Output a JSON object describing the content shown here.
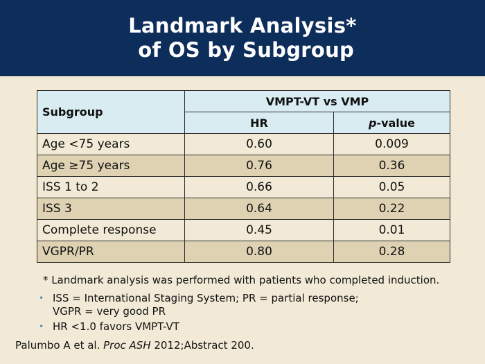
{
  "header": {
    "title_line1": "Landmark Analysis*",
    "title_line2": " of OS by Subgroup"
  },
  "table": {
    "col_subgroup": "Subgroup",
    "col_group": "VMPT-VT vs VMP",
    "col_hr": "HR",
    "col_pvalue_italic": "p",
    "col_pvalue_rest": "-value",
    "rows": [
      {
        "subgroup": "Age <75 years",
        "hr": "0.60",
        "p": "0.009"
      },
      {
        "subgroup": "Age ≥75 years",
        "hr": "0.76",
        "p": "0.36"
      },
      {
        "subgroup": "ISS 1 to 2",
        "hr": "0.66",
        "p": "0.05"
      },
      {
        "subgroup": "ISS 3",
        "hr": "0.64",
        "p": "0.22"
      },
      {
        "subgroup": "Complete response",
        "hr": "0.45",
        "p": "0.01"
      },
      {
        "subgroup": "VGPR/PR",
        "hr": "0.80",
        "p": "0.28"
      }
    ]
  },
  "footnote": "* Landmark analysis was performed with patients who completed induction.",
  "bullets": {
    "b1_line1": "ISS = International Staging System; PR = partial response;",
    "b1_line2": "VGPR = very good PR",
    "b2": "HR <1.0 favors VMPT-VT"
  },
  "citation": {
    "authors": "Palumbo A et al. ",
    "journal": "Proc ASH",
    "rest": " 2012;Abstract 200."
  },
  "colors": {
    "header_bg": "#0d2d5a",
    "page_bg": "#f2ead6",
    "table_header_bg": "#d8ecf2",
    "row_alt_bg": "#ded2b3",
    "bullet_color": "#3d9bb3"
  }
}
